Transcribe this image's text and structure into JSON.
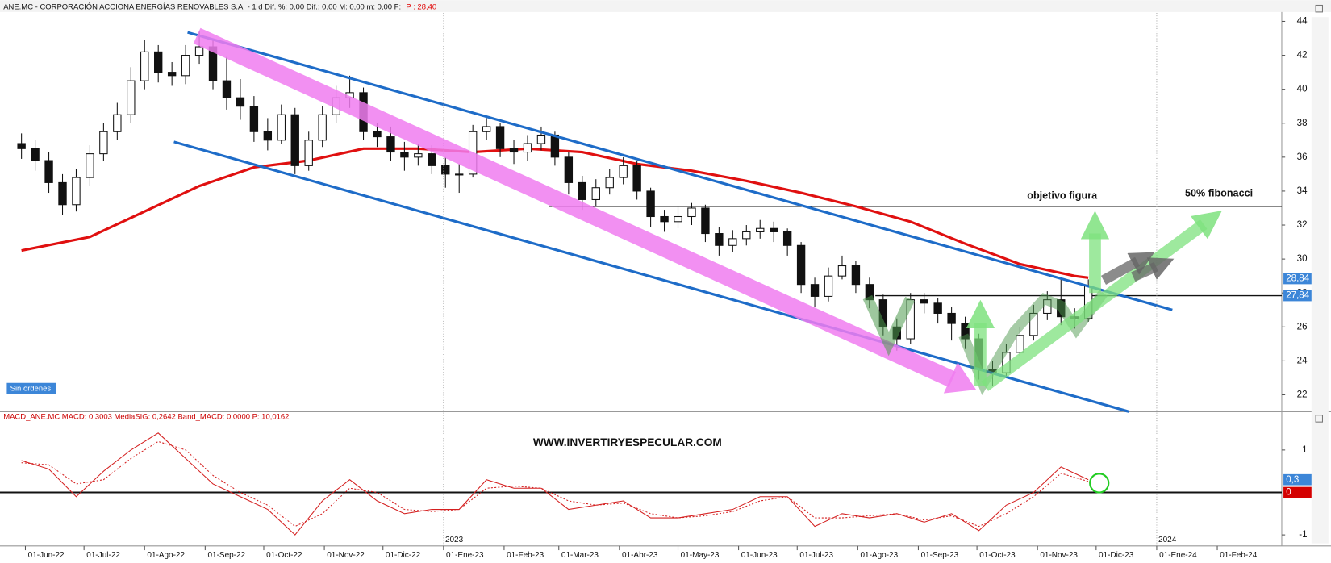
{
  "chart_data": [
    {
      "type": "candlestick",
      "title": "ANE.MC - CORPORACIÓN ACCIONA ENERGÍAS RENOVABLES S.A. - 1 d  Dif. %: 0,00  Dif.: 0,00  M: 0,00  m: 0,00  F:",
      "subtitle": "P : 28,40",
      "x": [
        "30-May-22",
        "06-Jun-22",
        "13-Jun-22",
        "20-Jun-22",
        "27-Jun-22",
        "04-Jul-22",
        "11-Jul-22",
        "18-Jul-22",
        "25-Jul-22",
        "01-Ago-22",
        "08-Ago-22",
        "15-Ago-22",
        "22-Ago-22",
        "29-Ago-22",
        "05-Sep-22",
        "12-Sep-22",
        "19-Sep-22",
        "26-Sep-22",
        "03-Oct-22",
        "10-Oct-22",
        "17-Oct-22",
        "24-Oct-22",
        "31-Oct-22",
        "07-Nov-22",
        "14-Nov-22",
        "21-Nov-22",
        "28-Nov-22",
        "05-Dic-22",
        "12-Dic-22",
        "19-Dic-22",
        "26-Dic-22",
        "02-Ene-23",
        "09-Ene-23",
        "16-Ene-23",
        "23-Ene-23",
        "30-Ene-23",
        "06-Feb-23",
        "13-Feb-23",
        "20-Feb-23",
        "27-Feb-23",
        "06-Mar-23",
        "13-Mar-23",
        "20-Mar-23",
        "27-Mar-23",
        "03-Abr-23",
        "10-Abr-23",
        "17-Abr-23",
        "24-Abr-23",
        "01-May-23",
        "08-May-23",
        "15-May-23",
        "22-May-23",
        "29-May-23",
        "05-Jun-23",
        "12-Jun-23",
        "19-Jun-23",
        "26-Jun-23",
        "03-Jul-23",
        "10-Jul-23",
        "17-Jul-23",
        "24-Jul-23",
        "31-Jul-23",
        "07-Ago-23",
        "14-Ago-23",
        "21-Ago-23",
        "28-Ago-23",
        "04-Sep-23",
        "11-Sep-23",
        "18-Sep-23",
        "25-Sep-23",
        "02-Oct-23",
        "09-Oct-23",
        "16-Oct-23",
        "23-Oct-23",
        "30-Oct-23",
        "06-Nov-23",
        "13-Nov-23",
        "20-Nov-23",
        "27-Nov-23"
      ],
      "ohlc": [
        [
          36.8,
          37.4,
          35.9,
          36.5
        ],
        [
          36.5,
          37.0,
          35.2,
          35.8
        ],
        [
          35.8,
          36.3,
          33.9,
          34.5
        ],
        [
          34.5,
          35.0,
          32.6,
          33.2
        ],
        [
          33.2,
          35.3,
          32.8,
          34.8
        ],
        [
          34.8,
          36.7,
          34.3,
          36.2
        ],
        [
          36.2,
          38.0,
          35.8,
          37.5
        ],
        [
          37.5,
          39.2,
          37.0,
          38.5
        ],
        [
          38.5,
          41.3,
          38.0,
          40.5
        ],
        [
          40.5,
          42.9,
          40.0,
          42.2
        ],
        [
          42.2,
          42.6,
          40.4,
          41
        ],
        [
          41,
          41.6,
          40.2,
          40.8
        ],
        [
          40.8,
          42.6,
          40.3,
          42
        ],
        [
          42,
          43.4,
          41.5,
          42.5
        ],
        [
          42.5,
          42.9,
          40.0,
          40.5
        ],
        [
          40.5,
          41.9,
          38.8,
          39.5
        ],
        [
          39.5,
          40.6,
          38.2,
          39
        ],
        [
          39,
          39.6,
          36.9,
          37.5
        ],
        [
          37.5,
          38.3,
          36.4,
          37
        ],
        [
          37,
          39.1,
          36.8,
          38.5
        ],
        [
          38.5,
          38.9,
          35.0,
          35.5
        ],
        [
          35.5,
          37.5,
          35.2,
          37
        ],
        [
          37,
          39.0,
          36.6,
          38.5
        ],
        [
          38.5,
          40.2,
          38.0,
          39.5
        ],
        [
          39.5,
          40.8,
          38.9,
          39.8
        ],
        [
          39.8,
          40.1,
          37.0,
          37.5
        ],
        [
          37.5,
          38.0,
          36.6,
          37.2
        ],
        [
          37.2,
          37.8,
          35.8,
          36.3
        ],
        [
          36.3,
          36.9,
          35.2,
          36
        ],
        [
          36,
          36.8,
          35.5,
          36.2
        ],
        [
          36.2,
          36.7,
          35.0,
          35.5
        ],
        [
          35.5,
          36.0,
          34.2,
          35
        ],
        [
          35,
          35.6,
          33.9,
          35
        ],
        [
          35,
          37.9,
          34.8,
          37.5
        ],
        [
          37.5,
          38.3,
          37.0,
          37.8
        ],
        [
          37.8,
          38.0,
          36.0,
          36.5
        ],
        [
          36.5,
          37.0,
          35.6,
          36.3
        ],
        [
          36.3,
          37.3,
          35.8,
          36.8
        ],
        [
          36.8,
          37.8,
          36.4,
          37.3
        ],
        [
          37.3,
          37.5,
          35.5,
          36
        ],
        [
          36,
          36.3,
          33.8,
          34.5
        ],
        [
          34.5,
          34.9,
          32.9,
          33.5
        ],
        [
          33.5,
          34.7,
          33.1,
          34.2
        ],
        [
          34.2,
          35.3,
          33.8,
          34.8
        ],
        [
          34.8,
          36.0,
          34.4,
          35.5
        ],
        [
          35.5,
          35.8,
          33.5,
          34
        ],
        [
          34,
          34.2,
          31.9,
          32.5
        ],
        [
          32.5,
          32.9,
          31.6,
          32.2
        ],
        [
          32.2,
          33.1,
          31.8,
          32.5
        ],
        [
          32.5,
          33.3,
          32.0,
          33
        ],
        [
          33,
          33.2,
          31.0,
          31.5
        ],
        [
          31.5,
          31.9,
          30.2,
          30.8
        ],
        [
          30.8,
          31.7,
          30.4,
          31.2
        ],
        [
          31.2,
          32.0,
          30.8,
          31.6
        ],
        [
          31.6,
          32.3,
          31.2,
          31.8
        ],
        [
          31.8,
          32.2,
          31.0,
          31.6
        ],
        [
          31.6,
          31.8,
          30.2,
          30.8
        ],
        [
          30.8,
          31.0,
          28.0,
          28.5
        ],
        [
          28.5,
          28.9,
          27.2,
          27.8
        ],
        [
          27.8,
          29.5,
          27.5,
          29
        ],
        [
          29,
          30.2,
          28.8,
          29.6
        ],
        [
          29.6,
          29.9,
          28.0,
          28.5
        ],
        [
          28.5,
          28.9,
          27.1,
          27.6
        ],
        [
          27.6,
          27.9,
          25.5,
          26
        ],
        [
          26,
          26.5,
          24.6,
          25.3
        ],
        [
          25.3,
          28.0,
          25.0,
          27.6
        ],
        [
          27.6,
          28.0,
          26.8,
          27.4
        ],
        [
          27.4,
          27.7,
          26.2,
          26.8
        ],
        [
          26.8,
          27.2,
          25.2,
          26.2
        ],
        [
          26.2,
          26.6,
          24.7,
          25.3
        ],
        [
          25.3,
          25.6,
          22.9,
          23.5
        ],
        [
          23.5,
          24.0,
          22.5,
          23.3
        ],
        [
          23.3,
          25.0,
          23.0,
          24.5
        ],
        [
          24.5,
          26.0,
          24.3,
          25.5
        ],
        [
          25.5,
          27.3,
          25.2,
          26.8
        ],
        [
          26.8,
          28.1,
          26.4,
          27.6
        ],
        [
          27.6,
          28.8,
          26.1,
          26.6
        ],
        [
          26.6,
          27.1,
          25.9,
          26.5
        ],
        [
          26.5,
          28.8,
          26.3,
          28.4
        ]
      ],
      "sma": {
        "color": "#e01010",
        "x": [
          "30-May-22",
          "04-Jul-22",
          "01-Ago-22",
          "29-Ago-22",
          "26-Sep-22",
          "24-Oct-22",
          "21-Nov-22",
          "19-Dic-22",
          "16-Ene-23",
          "13-Feb-23",
          "13-Mar-23",
          "10-Abr-23",
          "08-May-23",
          "05-Jun-23",
          "03-Jul-23",
          "31-Jul-23",
          "28-Ago-23",
          "25-Sep-23",
          "23-Oct-23",
          "20-Nov-23",
          "27-Nov-23"
        ],
        "values": [
          30.5,
          31.3,
          32.8,
          34.3,
          35.4,
          35.8,
          36.5,
          36.5,
          36.3,
          36.5,
          36.3,
          35.6,
          35.2,
          34.6,
          33.9,
          33.1,
          32.2,
          30.9,
          29.7,
          29.0,
          28.9
        ]
      },
      "trendlines": [
        {
          "from": [
            "23-Ago-22",
            43.35
          ],
          "to": [
            "09-Ene-24",
            27.0
          ],
          "color": "#1e6cc8"
        },
        {
          "from": [
            "16-Ago-22",
            36.9
          ],
          "to": [
            "18-Dic-23",
            21.0
          ],
          "color": "#1e6cc8"
        }
      ],
      "levels": [
        {
          "value": 33.1,
          "from": "24-Feb-23"
        },
        {
          "value": 27.84,
          "from": "10-Ago-23"
        }
      ],
      "markers": [
        {
          "value": 28.84,
          "label": "28,84",
          "color": "#3c86d8"
        },
        {
          "value": 27.84,
          "label": "27,84",
          "color": "#3c86d8"
        }
      ],
      "annotations": [
        "objetivo figura",
        "50% fibonacci",
        "Sin órdenes"
      ],
      "xlim": [
        "19-May-22",
        "05-Mar-24"
      ],
      "ylim": [
        21.1,
        44.5
      ],
      "yticks": [
        22,
        24,
        26,
        28,
        30,
        32,
        34,
        36,
        38,
        40,
        42,
        44
      ]
    },
    {
      "type": "line",
      "title": "MACD_ANE.MC  MACD: 0,3003  MediaSIG: 0,2642  Band_MACD: 0,0000  P: 10,0162",
      "watermark": "WWW.INVERTIRYESPECULAR.COM",
      "x": [
        "30-May-22",
        "13-Jun-22",
        "27-Jun-22",
        "11-Jul-22",
        "25-Jul-22",
        "08-Ago-22",
        "22-Ago-22",
        "05-Sep-22",
        "19-Sep-22",
        "03-Oct-22",
        "17-Oct-22",
        "31-Oct-22",
        "14-Nov-22",
        "28-Nov-22",
        "12-Dic-22",
        "26-Dic-22",
        "09-Ene-23",
        "23-Ene-23",
        "06-Feb-23",
        "20-Feb-23",
        "06-Mar-23",
        "20-Mar-23",
        "03-Abr-23",
        "17-Abr-23",
        "01-May-23",
        "15-May-23",
        "29-May-23",
        "12-Jun-23",
        "26-Jun-23",
        "10-Jul-23",
        "24-Jul-23",
        "07-Ago-23",
        "21-Ago-23",
        "04-Sep-23",
        "18-Sep-23",
        "02-Oct-23",
        "16-Oct-23",
        "30-Oct-23",
        "13-Nov-23",
        "27-Nov-23"
      ],
      "series": [
        {
          "color": "#d42020",
          "values": [
            0.75,
            0.55,
            -0.1,
            0.5,
            1.0,
            1.4,
            0.8,
            0.2,
            -0.1,
            -0.4,
            -1.0,
            -0.2,
            0.3,
            -0.2,
            -0.5,
            -0.4,
            -0.4,
            0.3,
            0.1,
            0.1,
            -0.4,
            -0.3,
            -0.2,
            -0.6,
            -0.6,
            -0.5,
            -0.4,
            -0.1,
            -0.1,
            -0.8,
            -0.5,
            -0.6,
            -0.5,
            -0.7,
            -0.5,
            -0.9,
            -0.3,
            0.0,
            0.6,
            0.3
          ]
        },
        {
          "color": "#d42020",
          "dash": true,
          "values": [
            0.7,
            0.65,
            0.2,
            0.3,
            0.8,
            1.2,
            1.0,
            0.4,
            0.0,
            -0.3,
            -0.8,
            -0.5,
            0.1,
            0.0,
            -0.4,
            -0.45,
            -0.4,
            0.1,
            0.15,
            0.1,
            -0.2,
            -0.3,
            -0.25,
            -0.5,
            -0.6,
            -0.55,
            -0.45,
            -0.2,
            -0.1,
            -0.6,
            -0.6,
            -0.55,
            -0.5,
            -0.65,
            -0.55,
            -0.8,
            -0.5,
            -0.1,
            0.45,
            0.26
          ]
        }
      ],
      "hlines": [
        0
      ],
      "markers": [
        {
          "value": 0.3,
          "label": "0,3",
          "color": "#3c86d8"
        },
        {
          "value": 0,
          "label": "0",
          "color": "#d40000"
        }
      ],
      "xlim": [
        "19-May-22",
        "05-Mar-24"
      ],
      "ylim": [
        -1.2,
        1.84
      ],
      "yticks": [
        -1,
        1
      ],
      "xticks": [
        "01-Jun-22",
        "01-Jul-22",
        "01-Ago-22",
        "01-Sep-22",
        "01-Oct-22",
        "01-Nov-22",
        "01-Dic-22",
        "01-Ene-23",
        "01-Feb-23",
        "01-Mar-23",
        "01-Abr-23",
        "01-May-23",
        "01-Jun-23",
        "01-Jul-23",
        "01-Ago-23",
        "01-Sep-23",
        "01-Oct-23",
        "01-Nov-23",
        "01-Dic-23",
        "01-Ene-24",
        "01-Feb-24"
      ],
      "year_ticks": [
        {
          "value": "01-Ene-23",
          "label": "2023"
        },
        {
          "value": "01-Ene-24",
          "label": "2024"
        }
      ]
    }
  ]
}
